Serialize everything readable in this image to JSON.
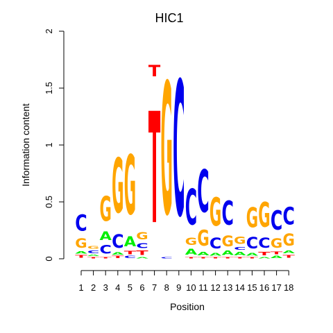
{
  "chart_data": {
    "type": "sequence-logo",
    "title": "HIC1",
    "xlabel": "Position",
    "ylabel": "Information content",
    "ylim": [
      0,
      2
    ],
    "yticks": [
      "0",
      "0.5",
      "1",
      "1.5",
      "2"
    ],
    "positions": [
      "1",
      "2",
      "3",
      "4",
      "5",
      "6",
      "7",
      "8",
      "9",
      "10",
      "11",
      "12",
      "13",
      "14",
      "15",
      "16",
      "17",
      "18"
    ],
    "colors": {
      "A": "#00ee00",
      "C": "#0000ee",
      "G": "#ffa500",
      "T": "#ff0000"
    },
    "columns": [
      [
        {
          "b": "T",
          "h": 0.04
        },
        {
          "b": "A",
          "h": 0.03
        },
        {
          "b": "G",
          "h": 0.13
        },
        {
          "b": "C",
          "h": 0.23
        }
      ],
      [
        {
          "b": "T",
          "h": 0.02
        },
        {
          "b": "A",
          "h": 0.02
        },
        {
          "b": "C",
          "h": 0.04
        },
        {
          "b": "G",
          "h": 0.04
        }
      ],
      [
        {
          "b": "T",
          "h": 0.02
        },
        {
          "b": "C",
          "h": 0.12
        },
        {
          "b": "A",
          "h": 0.12
        },
        {
          "b": "G",
          "h": 0.35
        }
      ],
      [
        {
          "b": "T",
          "h": 0.03
        },
        {
          "b": "A",
          "h": 0.03
        },
        {
          "b": "C",
          "h": 0.19
        },
        {
          "b": "G",
          "h": 0.77
        }
      ],
      [
        {
          "b": "C",
          "h": 0.03
        },
        {
          "b": "T",
          "h": 0.05
        },
        {
          "b": "A",
          "h": 0.14
        },
        {
          "b": "G",
          "h": 0.84
        }
      ],
      [
        {
          "b": "A",
          "h": 0.02
        },
        {
          "b": "T",
          "h": 0.06
        },
        {
          "b": "C",
          "h": 0.07
        },
        {
          "b": "G",
          "h": 0.1
        }
      ],
      [
        {
          "b": "T",
          "h": 1.57
        },
        {
          "b": "T",
          "h": 0.16
        }
      ],
      [
        {
          "b": "C",
          "h": 0.02
        },
        {
          "b": "G",
          "h": 1.86
        }
      ],
      [
        {
          "b": "C",
          "h": 1.9
        }
      ],
      [
        {
          "b": "T",
          "h": 0.02
        },
        {
          "b": "A",
          "h": 0.08
        },
        {
          "b": "G",
          "h": 0.1
        },
        {
          "b": "C",
          "h": 0.5
        }
      ],
      [
        {
          "b": "T",
          "h": 0.02
        },
        {
          "b": "A",
          "h": 0.05
        },
        {
          "b": "G",
          "h": 0.22
        },
        {
          "b": "C",
          "h": 0.6
        }
      ],
      [
        {
          "b": "T",
          "h": 0.02
        },
        {
          "b": "A",
          "h": 0.04
        },
        {
          "b": "C",
          "h": 0.15
        },
        {
          "b": "G",
          "h": 0.4
        }
      ],
      [
        {
          "b": "T",
          "h": 0.02
        },
        {
          "b": "A",
          "h": 0.06
        },
        {
          "b": "G",
          "h": 0.15
        },
        {
          "b": "C",
          "h": 0.34
        }
      ],
      [
        {
          "b": "T",
          "h": 0.02
        },
        {
          "b": "A",
          "h": 0.05
        },
        {
          "b": "C",
          "h": 0.04
        },
        {
          "b": "G",
          "h": 0.1
        }
      ],
      [
        {
          "b": "T",
          "h": 0.02
        },
        {
          "b": "A",
          "h": 0.04
        },
        {
          "b": "C",
          "h": 0.16
        },
        {
          "b": "G",
          "h": 0.28
        }
      ],
      [
        {
          "b": "A",
          "h": 0.02
        },
        {
          "b": "T",
          "h": 0.05
        },
        {
          "b": "C",
          "h": 0.14
        },
        {
          "b": "G",
          "h": 0.35
        }
      ],
      [
        {
          "b": "A",
          "h": 0.03
        },
        {
          "b": "T",
          "h": 0.04
        },
        {
          "b": "G",
          "h": 0.13
        },
        {
          "b": "C",
          "h": 0.27
        }
      ],
      [
        {
          "b": "T",
          "h": 0.04
        },
        {
          "b": "A",
          "h": 0.04
        },
        {
          "b": "G",
          "h": 0.17
        },
        {
          "b": "C",
          "h": 0.25
        }
      ]
    ]
  }
}
